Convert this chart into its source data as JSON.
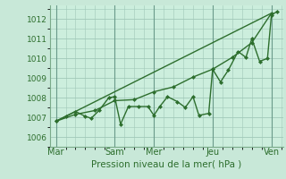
{
  "xlabel": "Pression niveau de la mer( hPa )",
  "bg_color": "#c8e8d8",
  "plot_bg_color": "#cceedd",
  "grid_color": "#a0c8b8",
  "line_color": "#2d6e2d",
  "ylim": [
    1005.5,
    1012.7
  ],
  "yticks": [
    1006,
    1007,
    1008,
    1009,
    1010,
    1011,
    1012
  ],
  "day_labels": [
    "Mar",
    "Sam",
    "Mer",
    "Jeu",
    "Ven"
  ],
  "day_positions": [
    0,
    30,
    50,
    80,
    110
  ],
  "vline_x": [
    0,
    30,
    50,
    80,
    110
  ],
  "trend_line": {
    "x": [
      0,
      110
    ],
    "y": [
      1006.8,
      1012.3
    ]
  },
  "smooth_line": {
    "x": [
      0,
      10,
      20,
      30,
      40,
      50,
      60,
      70,
      80,
      90,
      100,
      110
    ],
    "y": [
      1006.8,
      1007.15,
      1007.35,
      1007.85,
      1007.9,
      1008.3,
      1008.55,
      1009.05,
      1009.45,
      1010.05,
      1010.8,
      1012.3
    ]
  },
  "jagged_line": {
    "x": [
      0,
      5,
      10,
      15,
      18,
      22,
      27,
      30,
      33,
      37,
      42,
      47,
      50,
      53,
      57,
      62,
      66,
      70,
      73,
      78,
      80,
      84,
      88,
      93,
      97,
      100,
      104,
      108,
      110,
      113
    ],
    "y": [
      1006.8,
      1007.05,
      1007.3,
      1007.05,
      1006.95,
      1007.35,
      1008.0,
      1008.05,
      1006.65,
      1007.55,
      1007.55,
      1007.55,
      1007.1,
      1007.55,
      1008.05,
      1007.8,
      1007.5,
      1008.05,
      1007.1,
      1007.2,
      1009.45,
      1008.8,
      1009.4,
      1010.35,
      1010.05,
      1011.0,
      1009.85,
      1010.0,
      1012.2,
      1012.4
    ]
  },
  "marker_size": 2.5,
  "line_width": 1.0,
  "ytick_fontsize": 6.5,
  "xtick_fontsize": 7.0,
  "xlabel_fontsize": 7.5
}
